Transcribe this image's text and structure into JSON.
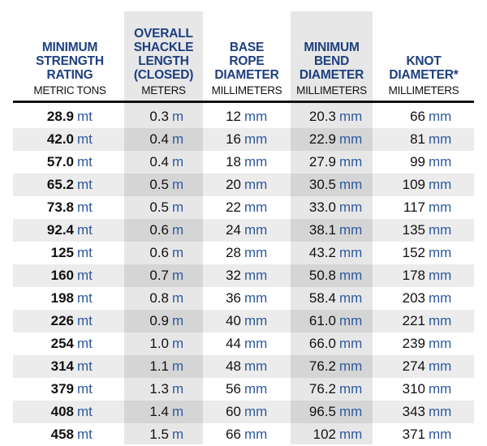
{
  "columns": [
    {
      "title": "MINIMUM\nSTRENGTH\nRATING",
      "unit_label": "METRIC TONS",
      "shaded": false
    },
    {
      "title": "OVERALL\nSHACKLE\nLENGTH\n(CLOSED)",
      "unit_label": "METERS",
      "shaded": true
    },
    {
      "title": "BASE\nROPE\nDIAMETER",
      "unit_label": "MILLIMETERS",
      "shaded": false
    },
    {
      "title": "MINIMUM\nBEND\nDIAMETER",
      "unit_label": "MILLIMETERS",
      "shaded": true
    },
    {
      "title": "KNOT\nDIAMETER*",
      "unit_label": "MILLIMETERS",
      "shaded": false
    }
  ],
  "units": [
    "mt",
    "m",
    "mm",
    "mm",
    "mm"
  ],
  "rows": [
    [
      "28.9",
      "0.3",
      "12",
      "20.3",
      "66"
    ],
    [
      "42.0",
      "0.4",
      "16",
      "22.9",
      "81"
    ],
    [
      "57.0",
      "0.4",
      "18",
      "27.9",
      "99"
    ],
    [
      "65.2",
      "0.5",
      "20",
      "30.5",
      "109"
    ],
    [
      "73.8",
      "0.5",
      "22",
      "33.0",
      "117"
    ],
    [
      "92.4",
      "0.6",
      "24",
      "38.1",
      "135"
    ],
    [
      "125",
      "0.6",
      "28",
      "43.2",
      "152"
    ],
    [
      "160",
      "0.7",
      "32",
      "50.8",
      "178"
    ],
    [
      "198",
      "0.8",
      "36",
      "58.4",
      "203"
    ],
    [
      "226",
      "0.9",
      "40",
      "61.0",
      "221"
    ],
    [
      "254",
      "1.0",
      "44",
      "66.0",
      "239"
    ],
    [
      "314",
      "1.1",
      "48",
      "76.2",
      "274"
    ],
    [
      "379",
      "1.3",
      "56",
      "76.2",
      "310"
    ],
    [
      "408",
      "1.4",
      "60",
      "96.5",
      "343"
    ],
    [
      "458",
      "1.5",
      "66",
      "102",
      "371"
    ]
  ],
  "colors": {
    "header_title": "#1d3f7f",
    "unit": "#2e5a9c",
    "shaded_column": "#e7e7e8",
    "stripe": "#dededf",
    "rule": "#111111"
  }
}
